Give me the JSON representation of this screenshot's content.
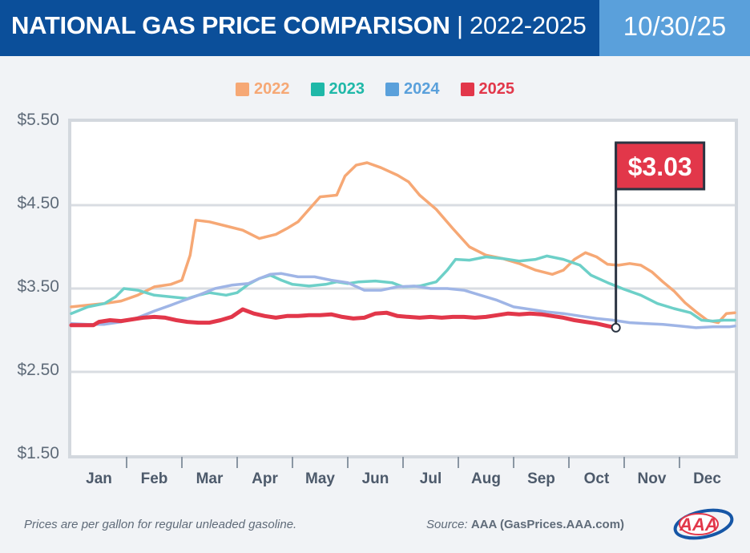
{
  "header": {
    "title_bold": "NATIONAL GAS PRICE COMPARISON",
    "title_sep": "|",
    "title_thin": "2022-2025",
    "date": "10/30/25"
  },
  "colors": {
    "header_bg": "#0b4f9a",
    "date_bg": "#5aa0db",
    "s2022": "#f6a875",
    "s2023": "#6dd0c8",
    "s2024": "#9fb5e6",
    "s2025": "#e2374a"
  },
  "callout": {
    "label": "$3.03"
  },
  "footer": {
    "note": "Prices are per gallon for regular unleaded gasoline.",
    "source_label": "Source:",
    "source_value": "AAA (GasPrices.AAA.com)",
    "logo_text": "AAA"
  },
  "chart_data": {
    "type": "line",
    "ylim": [
      1.5,
      5.5
    ],
    "yticks": [
      {
        "value": 5.5,
        "label": "$5.50"
      },
      {
        "value": 4.5,
        "label": "$4.50"
      },
      {
        "value": 3.5,
        "label": "$3.50"
      },
      {
        "value": 2.5,
        "label": "$2.50"
      },
      {
        "value": 1.5,
        "label": "$1.50"
      }
    ],
    "months": [
      "Jan",
      "Feb",
      "Mar",
      "Apr",
      "May",
      "Jun",
      "Jul",
      "Aug",
      "Sep",
      "Oct",
      "Nov",
      "Dec"
    ],
    "xlim": [
      0,
      12
    ],
    "grid": true,
    "legend_position": "top-center",
    "series": [
      {
        "name": "2022",
        "color": "#f6a875",
        "points": [
          [
            0,
            3.28
          ],
          [
            0.3,
            3.3
          ],
          [
            0.6,
            3.32
          ],
          [
            0.9,
            3.35
          ],
          [
            1.2,
            3.42
          ],
          [
            1.5,
            3.52
          ],
          [
            1.8,
            3.55
          ],
          [
            2.0,
            3.6
          ],
          [
            2.15,
            3.9
          ],
          [
            2.25,
            4.32
          ],
          [
            2.5,
            4.3
          ],
          [
            2.8,
            4.25
          ],
          [
            3.1,
            4.2
          ],
          [
            3.4,
            4.1
          ],
          [
            3.7,
            4.15
          ],
          [
            3.9,
            4.22
          ],
          [
            4.1,
            4.3
          ],
          [
            4.3,
            4.45
          ],
          [
            4.5,
            4.6
          ],
          [
            4.8,
            4.62
          ],
          [
            4.95,
            4.85
          ],
          [
            5.15,
            4.98
          ],
          [
            5.35,
            5.01
          ],
          [
            5.6,
            4.95
          ],
          [
            5.9,
            4.86
          ],
          [
            6.1,
            4.78
          ],
          [
            6.3,
            4.62
          ],
          [
            6.6,
            4.45
          ],
          [
            6.9,
            4.22
          ],
          [
            7.2,
            4.0
          ],
          [
            7.5,
            3.9
          ],
          [
            7.8,
            3.86
          ],
          [
            8.1,
            3.8
          ],
          [
            8.4,
            3.72
          ],
          [
            8.7,
            3.67
          ],
          [
            8.9,
            3.72
          ],
          [
            9.1,
            3.85
          ],
          [
            9.3,
            3.93
          ],
          [
            9.5,
            3.88
          ],
          [
            9.7,
            3.79
          ],
          [
            9.9,
            3.78
          ],
          [
            10.1,
            3.8
          ],
          [
            10.3,
            3.78
          ],
          [
            10.5,
            3.7
          ],
          [
            10.7,
            3.58
          ],
          [
            10.9,
            3.47
          ],
          [
            11.1,
            3.33
          ],
          [
            11.3,
            3.22
          ],
          [
            11.5,
            3.12
          ],
          [
            11.7,
            3.09
          ],
          [
            11.85,
            3.2
          ],
          [
            12,
            3.21
          ]
        ]
      },
      {
        "name": "2023",
        "color": "#6dd0c8",
        "points": [
          [
            0,
            3.2
          ],
          [
            0.3,
            3.28
          ],
          [
            0.6,
            3.32
          ],
          [
            0.8,
            3.4
          ],
          [
            0.95,
            3.5
          ],
          [
            1.2,
            3.48
          ],
          [
            1.5,
            3.42
          ],
          [
            1.8,
            3.4
          ],
          [
            2.1,
            3.38
          ],
          [
            2.3,
            3.42
          ],
          [
            2.5,
            3.45
          ],
          [
            2.8,
            3.42
          ],
          [
            3.0,
            3.45
          ],
          [
            3.2,
            3.55
          ],
          [
            3.4,
            3.62
          ],
          [
            3.6,
            3.66
          ],
          [
            3.8,
            3.6
          ],
          [
            4.0,
            3.55
          ],
          [
            4.3,
            3.53
          ],
          [
            4.6,
            3.55
          ],
          [
            4.8,
            3.58
          ],
          [
            5.0,
            3.56
          ],
          [
            5.2,
            3.58
          ],
          [
            5.5,
            3.59
          ],
          [
            5.8,
            3.57
          ],
          [
            6.0,
            3.52
          ],
          [
            6.3,
            3.53
          ],
          [
            6.6,
            3.58
          ],
          [
            6.8,
            3.72
          ],
          [
            6.95,
            3.85
          ],
          [
            7.2,
            3.84
          ],
          [
            7.5,
            3.88
          ],
          [
            7.8,
            3.86
          ],
          [
            8.1,
            3.83
          ],
          [
            8.4,
            3.85
          ],
          [
            8.6,
            3.89
          ],
          [
            8.9,
            3.85
          ],
          [
            9.2,
            3.78
          ],
          [
            9.4,
            3.66
          ],
          [
            9.7,
            3.57
          ],
          [
            10.0,
            3.49
          ],
          [
            10.3,
            3.42
          ],
          [
            10.6,
            3.32
          ],
          [
            10.9,
            3.26
          ],
          [
            11.2,
            3.21
          ],
          [
            11.4,
            3.12
          ],
          [
            11.6,
            3.11
          ],
          [
            11.8,
            3.12
          ],
          [
            12,
            3.12
          ]
        ]
      },
      {
        "name": "2024",
        "color": "#9fb5e6",
        "points": [
          [
            0,
            3.08
          ],
          [
            0.3,
            3.07
          ],
          [
            0.6,
            3.07
          ],
          [
            0.9,
            3.1
          ],
          [
            1.2,
            3.15
          ],
          [
            1.5,
            3.23
          ],
          [
            1.8,
            3.3
          ],
          [
            2.0,
            3.35
          ],
          [
            2.3,
            3.42
          ],
          [
            2.6,
            3.5
          ],
          [
            2.9,
            3.54
          ],
          [
            3.2,
            3.56
          ],
          [
            3.4,
            3.62
          ],
          [
            3.6,
            3.67
          ],
          [
            3.8,
            3.68
          ],
          [
            4.1,
            3.64
          ],
          [
            4.4,
            3.64
          ],
          [
            4.7,
            3.6
          ],
          [
            5.0,
            3.57
          ],
          [
            5.3,
            3.48
          ],
          [
            5.6,
            3.48
          ],
          [
            5.9,
            3.52
          ],
          [
            6.2,
            3.53
          ],
          [
            6.5,
            3.5
          ],
          [
            6.8,
            3.5
          ],
          [
            7.1,
            3.48
          ],
          [
            7.4,
            3.42
          ],
          [
            7.7,
            3.36
          ],
          [
            8.0,
            3.28
          ],
          [
            8.3,
            3.25
          ],
          [
            8.6,
            3.22
          ],
          [
            8.9,
            3.2
          ],
          [
            9.2,
            3.17
          ],
          [
            9.5,
            3.14
          ],
          [
            9.8,
            3.12
          ],
          [
            10.1,
            3.09
          ],
          [
            10.4,
            3.08
          ],
          [
            10.7,
            3.07
          ],
          [
            11.0,
            3.05
          ],
          [
            11.3,
            3.03
          ],
          [
            11.6,
            3.04
          ],
          [
            11.9,
            3.04
          ],
          [
            12,
            3.05
          ]
        ]
      },
      {
        "name": "2025",
        "color": "#e2374a",
        "points": [
          [
            0,
            3.06
          ],
          [
            0.2,
            3.06
          ],
          [
            0.4,
            3.06
          ],
          [
            0.5,
            3.1
          ],
          [
            0.7,
            3.12
          ],
          [
            0.9,
            3.11
          ],
          [
            1.1,
            3.13
          ],
          [
            1.3,
            3.15
          ],
          [
            1.5,
            3.16
          ],
          [
            1.7,
            3.15
          ],
          [
            1.9,
            3.12
          ],
          [
            2.1,
            3.1
          ],
          [
            2.3,
            3.09
          ],
          [
            2.5,
            3.09
          ],
          [
            2.7,
            3.12
          ],
          [
            2.9,
            3.16
          ],
          [
            3.1,
            3.25
          ],
          [
            3.3,
            3.2
          ],
          [
            3.5,
            3.17
          ],
          [
            3.7,
            3.15
          ],
          [
            3.9,
            3.17
          ],
          [
            4.1,
            3.17
          ],
          [
            4.3,
            3.18
          ],
          [
            4.5,
            3.18
          ],
          [
            4.7,
            3.19
          ],
          [
            4.9,
            3.16
          ],
          [
            5.1,
            3.14
          ],
          [
            5.3,
            3.15
          ],
          [
            5.5,
            3.2
          ],
          [
            5.7,
            3.21
          ],
          [
            5.9,
            3.17
          ],
          [
            6.1,
            3.16
          ],
          [
            6.3,
            3.15
          ],
          [
            6.5,
            3.16
          ],
          [
            6.7,
            3.15
          ],
          [
            6.9,
            3.16
          ],
          [
            7.1,
            3.16
          ],
          [
            7.3,
            3.15
          ],
          [
            7.5,
            3.16
          ],
          [
            7.7,
            3.18
          ],
          [
            7.9,
            3.2
          ],
          [
            8.1,
            3.19
          ],
          [
            8.3,
            3.2
          ],
          [
            8.5,
            3.19
          ],
          [
            8.7,
            3.17
          ],
          [
            8.9,
            3.15
          ],
          [
            9.1,
            3.12
          ],
          [
            9.3,
            3.1
          ],
          [
            9.5,
            3.08
          ],
          [
            9.7,
            3.05
          ],
          [
            9.85,
            3.03
          ]
        ]
      }
    ],
    "callout_point": [
      9.85,
      3.03
    ]
  }
}
